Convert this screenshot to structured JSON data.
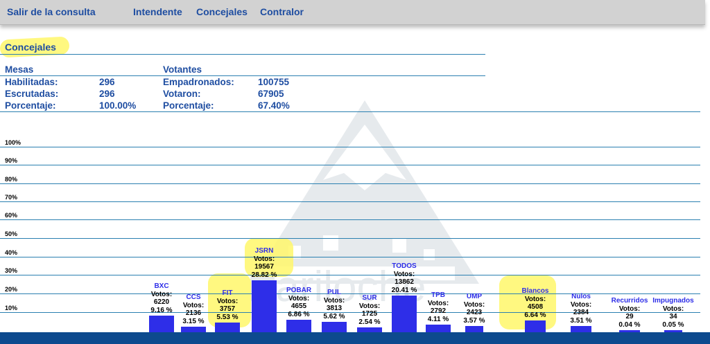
{
  "nav": {
    "exit": "Salir de la consulta",
    "intendente": "Intendente",
    "concejales": "Concejales",
    "contralor": "Contralor"
  },
  "page": {
    "title": "Concejales"
  },
  "mesas": {
    "heading": "Mesas",
    "habilitadas_label": "Habilitadas:",
    "habilitadas": "296",
    "escrutadas_label": "Escrutadas:",
    "escrutadas": "296",
    "porcentaje_label": "Porcentaje:",
    "porcentaje": "100.00%"
  },
  "votantes": {
    "heading": "Votantes",
    "empadronados_label": "Empadronados:",
    "empadronados": "100755",
    "votaron_label": "Votaron:",
    "votaron": "67905",
    "porcentaje_label": "Porcentaje:",
    "porcentaje": "67.40%"
  },
  "chart_data": {
    "type": "bar",
    "y_ticks": [
      "100%",
      "90%",
      "80%",
      "70%",
      "60%",
      "50%",
      "40%",
      "30%",
      "20%",
      "10%"
    ],
    "ylim": [
      0,
      100
    ],
    "votes_label": "Votos:",
    "categories": [
      "BXC",
      "CCS",
      "FIT",
      "JSRN",
      "POBAR",
      "PUL",
      "SUR",
      "TODOS",
      "TPB",
      "UMP",
      "Blancos",
      "Nulos",
      "Recurridos",
      "Impugnados"
    ],
    "votes": [
      "6220",
      "2136",
      "3757",
      "19567",
      "4655",
      "3813",
      "1725",
      "13862",
      "2792",
      "2423",
      "4508",
      "2384",
      "29",
      "34"
    ],
    "percent_labels": [
      "9.16 %",
      "3.15 %",
      "5.53 %",
      "28.82 %",
      "6.86 %",
      "5.62 %",
      "2.54 %",
      "20.41 %",
      "4.11 %",
      "3.57 %",
      "6.64 %",
      "3.51 %",
      "0.04 %",
      "0.05 %"
    ],
    "values": [
      9.16,
      3.15,
      5.53,
      28.82,
      6.86,
      5.62,
      2.54,
      20.41,
      4.11,
      3.57,
      6.64,
      3.51,
      0.04,
      0.05
    ],
    "bar_color": "#2e2ee8",
    "grid": true
  },
  "colors": {
    "accent": "#1e4da1",
    "rule": "#2a7fb0",
    "footer": "#0d4a8e",
    "highlight": "#fff76a"
  }
}
